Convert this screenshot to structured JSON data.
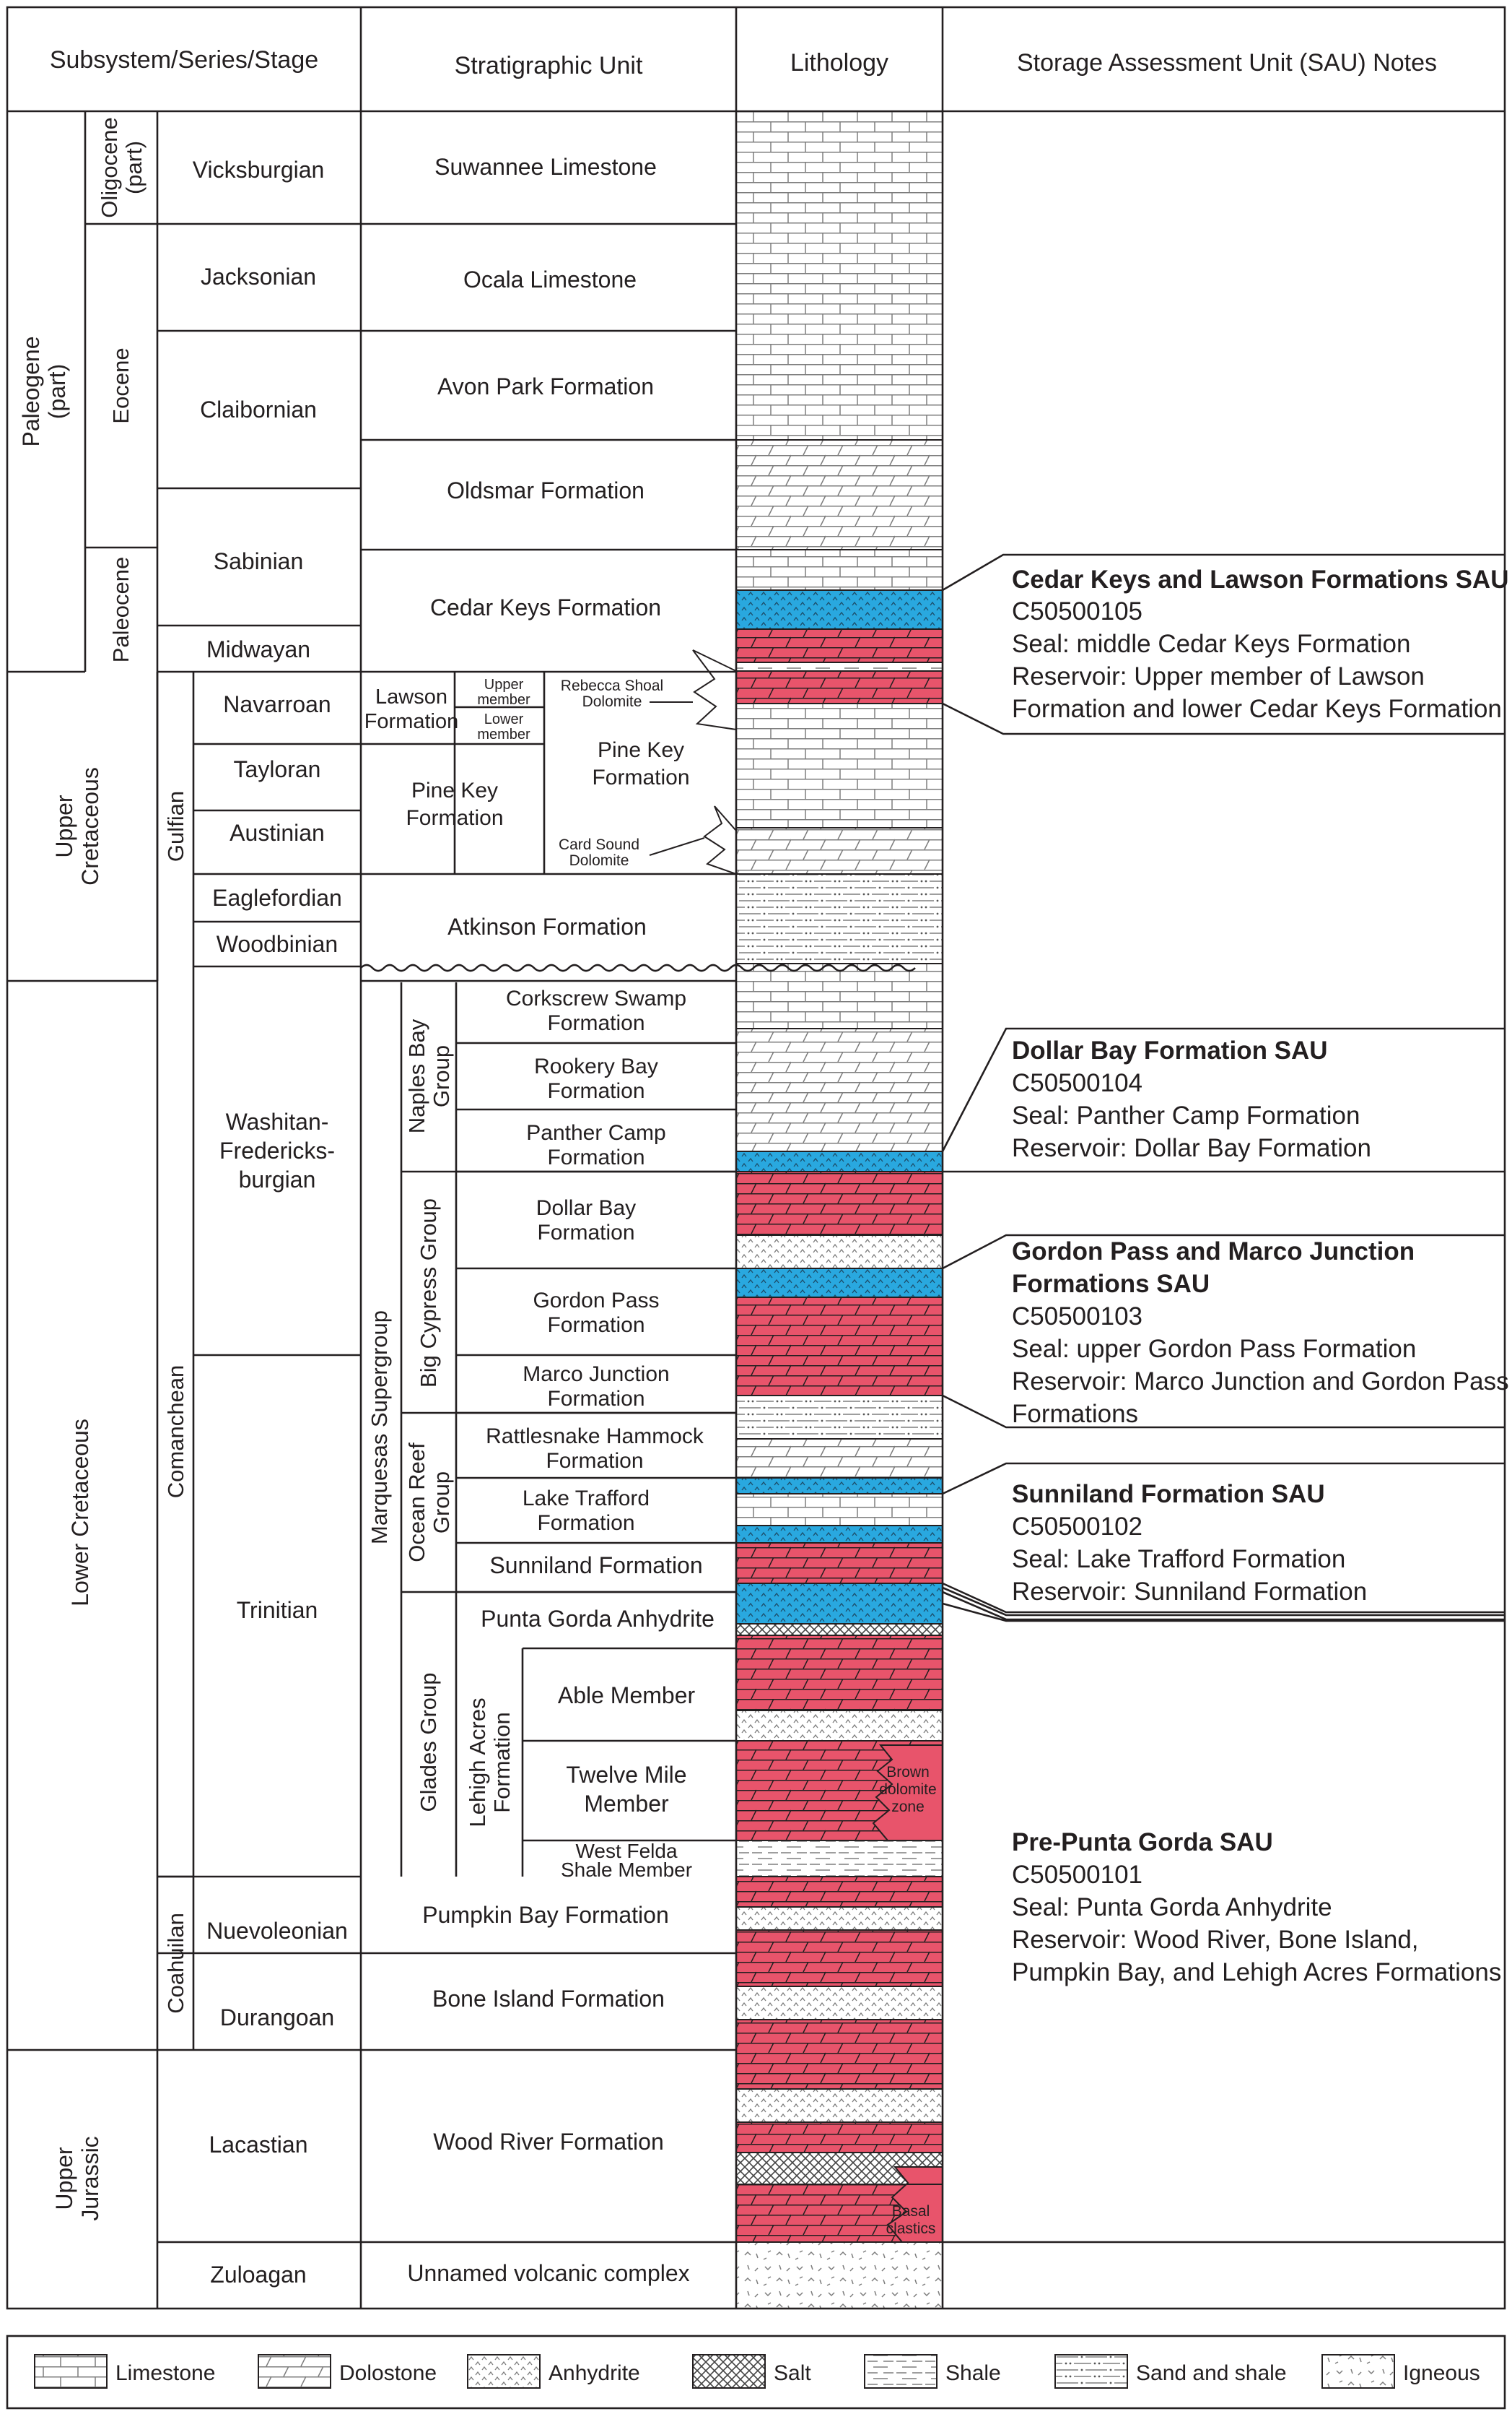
{
  "headers": {
    "subsystem": "Subsystem/Series/Stage",
    "unit": "Stratigraphic Unit",
    "lithology": "Lithology",
    "notes": "Storage Assessment Unit (SAU) Notes"
  },
  "systems": {
    "paleogene": [
      "Paleogene",
      "(part)"
    ],
    "upper_cretaceous": [
      "Upper",
      "Cretaceous"
    ],
    "lower_cretaceous": "Lower Cretaceous",
    "upper_jurassic": [
      "Upper",
      "Jurassic"
    ]
  },
  "series": {
    "oligocene": [
      "Oligocene",
      "(part)"
    ],
    "eocene": "Eocene",
    "paleocene": "Paleocene",
    "gulfian": "Gulfian",
    "comanchean": "Comanchean",
    "coahuilan": "Coahuilan"
  },
  "stages": {
    "vicksburgian": "Vicksburgian",
    "jacksonian": "Jacksonian",
    "claibornian": "Claibornian",
    "sabinian": "Sabinian",
    "midwayan": "Midwayan",
    "navarroan": "Navarroan",
    "tayloran": "Tayloran",
    "austinian": "Austinian",
    "eaglefordian": "Eaglefordian",
    "woodbinian": "Woodbinian",
    "washitan": [
      "Washitan-",
      "Fredericks-",
      "burgian"
    ],
    "trinitian": "Trinitian",
    "nuevoleonian": "Nuevoleonian",
    "durangoan": "Durangoan",
    "lacastian": "Lacastian",
    "zuloagan": "Zuloagan"
  },
  "groups": {
    "marquesas": "Marquesas Supergroup",
    "naples_bay": [
      "Naples Bay",
      "Group"
    ],
    "big_cypress": "Big Cypress Group",
    "ocean_reef": [
      "Ocean Reef",
      "Group"
    ],
    "glades": "Glades Group",
    "lehigh_acres": [
      "Lehigh Acres",
      "Formation"
    ]
  },
  "units": {
    "suwannee": "Suwannee Limestone",
    "ocala": "Ocala Limestone",
    "avon_park": "Avon Park Formation",
    "oldsmar": "Oldsmar Formation",
    "cedar_keys": "Cedar Keys Formation",
    "lawson": [
      "Lawson",
      "Formation"
    ],
    "upper_member": [
      "Upper",
      "member"
    ],
    "lower_member": [
      "Lower",
      "member"
    ],
    "rebecca_shoal": [
      "Rebecca Shoal",
      "Dolomite"
    ],
    "pine_key_left": [
      "Pine Key",
      "Formation"
    ],
    "pine_key_right": [
      "Pine Key",
      "Formation"
    ],
    "card_sound": [
      "Card Sound",
      "Dolomite"
    ],
    "atkinson": "Atkinson Formation",
    "corkscrew": [
      "Corkscrew Swamp",
      "Formation"
    ],
    "rookery": [
      "Rookery Bay",
      "Formation"
    ],
    "panther_camp": [
      "Panther Camp",
      "Formation"
    ],
    "dollar_bay": [
      "Dollar Bay",
      "Formation"
    ],
    "gordon_pass": [
      "Gordon Pass",
      "Formation"
    ],
    "marco_junction": [
      "Marco Junction",
      "Formation"
    ],
    "rattlesnake": [
      "Rattlesnake Hammock",
      "Formation"
    ],
    "lake_trafford": [
      "Lake Trafford",
      "Formation"
    ],
    "sunniland": "Sunniland Formation",
    "punta_gorda": "Punta Gorda Anhydrite",
    "able": "Able Member",
    "twelve_mile": [
      "Twelve Mile",
      "Member"
    ],
    "west_felda": [
      "West Felda",
      "Shale Member"
    ],
    "pumpkin_bay": "Pumpkin Bay Formation",
    "bone_island": "Bone Island Formation",
    "wood_river": "Wood River Formation",
    "unnamed_volcanic": "Unnamed volcanic complex"
  },
  "lithology_labels": {
    "brown_dolomite": [
      "Brown",
      "dolomite",
      "zone"
    ],
    "basal_clastics": [
      "Basal",
      "clastics"
    ]
  },
  "sau_notes": [
    {
      "name": "Cedar Keys and Lawson Formations SAU",
      "lines": [
        "C50500105",
        "Seal: middle Cedar Keys Formation",
        "Reservoir: Upper member of Lawson",
        "Formation and lower Cedar Keys Formation"
      ]
    },
    {
      "name": "Dollar Bay Formation SAU",
      "lines": [
        "C50500104",
        "Seal: Panther Camp Formation",
        "Reservoir: Dollar Bay Formation"
      ]
    },
    {
      "name": "Gordon Pass and Marco Junction",
      "name2": "Formations SAU",
      "lines": [
        "C50500103",
        "Seal: upper Gordon Pass Formation",
        "Reservoir: Marco Junction and Gordon Pass",
        "Formations"
      ]
    },
    {
      "name": "Sunniland Formation SAU",
      "lines": [
        "C50500102",
        "Seal: Lake Trafford Formation",
        "Reservoir: Sunniland Formation"
      ]
    },
    {
      "name": "Pre-Punta Gorda SAU",
      "lines": [
        "C50500101",
        "Seal:  Punta Gorda Anhydrite",
        "Reservoir:  Wood River, Bone Island,",
        "Pumpkin Bay, and Lehigh Acres Formations"
      ]
    }
  ],
  "legend": {
    "limestone": "Limestone",
    "dolostone": "Dolostone",
    "anhydrite": "Anhydrite",
    "salt": "Salt",
    "shale": "Shale",
    "sand_shale": "Sand and shale",
    "igneous": "Igneous"
  },
  "colors": {
    "line": "#231f20",
    "dolomite_red": "#e8546b",
    "anhydrite_blue": "#29a8df",
    "background": "#ffffff"
  }
}
